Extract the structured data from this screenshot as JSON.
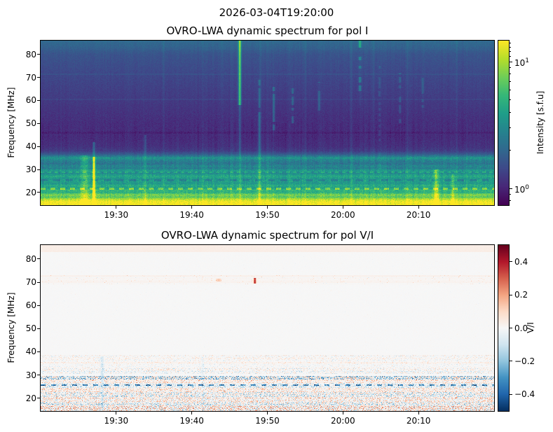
{
  "figure": {
    "suptitle": "2026-03-04T19:20:00",
    "background": "#ffffff"
  },
  "chart_data": [
    {
      "type": "heatmap",
      "title": "OVRO-LWA dynamic spectrum for pol I",
      "xlabel": "",
      "ylabel": "Frequency [MHz]",
      "x_axis": {
        "start": "19:20",
        "end": "20:20",
        "ticks": [
          {
            "label": "19:30",
            "min": 10
          },
          {
            "label": "19:40",
            "min": 20
          },
          {
            "label": "19:50",
            "min": 30
          },
          {
            "label": "20:00",
            "min": 40
          },
          {
            "label": "20:10",
            "min": 50
          }
        ]
      },
      "y_axis": {
        "min": 14.5,
        "max": 86,
        "tick_values": [
          20,
          30,
          40,
          50,
          60,
          70,
          80
        ]
      },
      "colorbar": {
        "label": "Intensity [s.f.u]",
        "scale": "log",
        "colormap": "viridis",
        "vmin": 0.74,
        "vmax": 14.7,
        "major_ticks": [
          {
            "base": "10",
            "exp": "1",
            "value": 10
          },
          {
            "base": "10",
            "exp": "0",
            "value": 1
          }
        ],
        "minor_tick_values": [
          0.8,
          0.9,
          2,
          3,
          4,
          5,
          6,
          7,
          8,
          9,
          11,
          12,
          13,
          14
        ]
      },
      "colormap_stops": [
        "#440154",
        "#482878",
        "#3e4989",
        "#31688e",
        "#26828e",
        "#1f9e89",
        "#35b779",
        "#6ece58",
        "#b5de2b",
        "#fde725"
      ],
      "background_profile": [
        [
          86,
          0.34
        ],
        [
          83,
          0.31
        ],
        [
          80,
          0.26
        ],
        [
          72,
          0.22
        ],
        [
          62,
          0.18
        ],
        [
          55,
          0.15
        ],
        [
          50,
          0.13
        ],
        [
          44,
          0.12
        ],
        [
          40,
          0.14
        ],
        [
          38,
          0.18
        ],
        [
          36.5,
          0.3
        ],
        [
          35,
          0.52
        ],
        [
          34,
          0.44
        ],
        [
          32.5,
          0.38
        ],
        [
          31.5,
          0.46
        ],
        [
          30.5,
          0.42
        ],
        [
          29.5,
          0.55
        ],
        [
          28.5,
          0.46
        ],
        [
          27,
          0.6
        ],
        [
          26,
          0.52
        ],
        [
          25,
          0.57
        ],
        [
          24,
          0.52
        ],
        [
          23,
          0.62
        ],
        [
          22,
          0.55
        ],
        [
          21,
          0.66
        ],
        [
          20,
          0.62
        ],
        [
          19,
          0.8
        ],
        [
          18,
          0.74
        ],
        [
          17,
          0.9
        ],
        [
          16,
          0.99
        ],
        [
          14.5,
          1.0
        ]
      ],
      "dash_rows": [
        {
          "f": 21.6,
          "dv": 0.22,
          "period": 14,
          "duty": 0.5
        },
        {
          "f": 25.2,
          "dv": -0.12,
          "period": 18,
          "duty": 0.55
        },
        {
          "f": 28.8,
          "dv": 0.12,
          "period": 10,
          "duty": 0.5
        }
      ],
      "h_lines": [
        {
          "f": 46,
          "dv": -0.03
        },
        {
          "f": 60.5,
          "dv": 0.03
        },
        {
          "f": 71.5,
          "dv": 0.03
        }
      ],
      "rfi_lines": [
        {
          "t_min": 16.2,
          "amp": 0.03,
          "w": 1.2
        },
        {
          "t_min": 24.0,
          "amp": 0.02,
          "w": 1.2
        },
        {
          "t_min": 29.0,
          "amp": 0.05,
          "w": 1.3
        },
        {
          "t_min": 35.0,
          "amp": 0.03,
          "w": 1.2
        },
        {
          "t_min": 41.0,
          "amp": 0.03,
          "w": 1.2
        },
        {
          "t_min": 44.0,
          "amp": 0.04,
          "w": 1.2
        },
        {
          "t_min": 48.5,
          "amp": 0.03,
          "w": 1.2
        },
        {
          "t_min": 55.0,
          "amp": 0.03,
          "w": 1.2
        }
      ],
      "bursts": [
        {
          "time": "19:26",
          "t_min": 5.8,
          "f_lo": 14.5,
          "f_hi": 36,
          "amp": 0.18,
          "w": 4.0,
          "spotty": false
        },
        {
          "time": "19:27",
          "t_min": 7.0,
          "f_lo": 14.5,
          "f_hi": 35.5,
          "amp": 0.65,
          "w": 1.3,
          "spotty": false
        },
        {
          "time": "19:27",
          "t_min": 7.0,
          "f_lo": 35.5,
          "f_hi": 42,
          "amp": 0.2,
          "w": 1.2,
          "spotty": false
        },
        {
          "time": "19:34",
          "t_min": 13.8,
          "f_lo": 14.5,
          "f_hi": 45,
          "amp": 0.12,
          "w": 1.2,
          "spotty": false
        },
        {
          "time": "19:46",
          "t_min": 26.3,
          "f_lo": 58,
          "f_hi": 86,
          "amp": 0.55,
          "w": 1.4,
          "spotty": false
        },
        {
          "time": "19:46",
          "t_min": 26.3,
          "f_lo": 36,
          "f_hi": 58,
          "amp": 0.15,
          "w": 1.2,
          "spotty": false
        },
        {
          "time": "19:46",
          "t_min": 26.3,
          "f_lo": 14.5,
          "f_hi": 36,
          "amp": 0.1,
          "w": 1.4,
          "spotty": false
        },
        {
          "time": "19:49",
          "t_min": 28.9,
          "f_lo": 14.5,
          "f_hi": 55,
          "amp": 0.2,
          "w": 1.3,
          "spotty": false
        },
        {
          "time": "19:49",
          "t_min": 28.9,
          "f_lo": 55,
          "f_hi": 70,
          "amp": 0.15,
          "w": 1.2,
          "spotty": true
        },
        {
          "time": "19:51",
          "t_min": 30.8,
          "f_lo": 45,
          "f_hi": 66,
          "amp": 0.18,
          "w": 1.2,
          "spotty": true
        },
        {
          "time": "19:53",
          "t_min": 33.3,
          "f_lo": 50,
          "f_hi": 70,
          "amp": 0.16,
          "w": 1.2,
          "spotty": true
        },
        {
          "time": "19:57",
          "t_min": 36.8,
          "f_lo": 54,
          "f_hi": 68,
          "amp": 0.14,
          "w": 1.2,
          "spotty": true
        },
        {
          "time": "20:02",
          "t_min": 42.2,
          "f_lo": 58,
          "f_hi": 79,
          "amp": 0.22,
          "w": 1.4,
          "spotty": true
        },
        {
          "time": "20:02",
          "t_min": 42.2,
          "f_lo": 83,
          "f_hi": 86,
          "amp": 0.3,
          "w": 1.4,
          "spotty": false
        },
        {
          "time": "20:05",
          "t_min": 44.8,
          "f_lo": 30,
          "f_hi": 75,
          "amp": 0.08,
          "w": 1.1,
          "spotty": true
        },
        {
          "time": "20:08",
          "t_min": 47.5,
          "f_lo": 50,
          "f_hi": 72,
          "amp": 0.12,
          "w": 1.2,
          "spotty": true
        },
        {
          "time": "20:10",
          "t_min": 50.5,
          "f_lo": 55,
          "f_hi": 70,
          "amp": 0.1,
          "w": 1.2,
          "spotty": true
        },
        {
          "time": "20:12",
          "t_min": 52.3,
          "f_lo": 14.5,
          "f_hi": 30,
          "amp": 0.25,
          "w": 2.5,
          "spotty": false
        },
        {
          "time": "20:14",
          "t_min": 54.5,
          "f_lo": 14.5,
          "f_hi": 28,
          "amp": 0.15,
          "w": 1.5,
          "spotty": false
        }
      ]
    },
    {
      "type": "heatmap",
      "title": "OVRO-LWA dynamic spectrum for pol V/I",
      "xlabel": "",
      "ylabel": "Frequency [MHz]",
      "x_axis": {
        "start": "19:20",
        "end": "20:20",
        "ticks": [
          {
            "label": "19:30",
            "min": 10
          },
          {
            "label": "19:40",
            "min": 20
          },
          {
            "label": "19:50",
            "min": 30
          },
          {
            "label": "20:00",
            "min": 40
          },
          {
            "label": "20:10",
            "min": 50
          }
        ]
      },
      "y_axis": {
        "min": 14.5,
        "max": 86,
        "tick_values": [
          20,
          30,
          40,
          50,
          60,
          70,
          80
        ]
      },
      "colorbar": {
        "label": "V/I",
        "scale": "linear",
        "colormap": "RdBu_r",
        "vmin": -0.5,
        "vmax": 0.5,
        "ticks": [
          {
            "label": "0.4",
            "value": 0.4
          },
          {
            "label": "0.2",
            "value": 0.2
          },
          {
            "label": "0.0",
            "value": 0.0
          },
          {
            "label": "−0.2",
            "value": -0.2
          },
          {
            "label": "−0.4",
            "value": -0.4
          }
        ]
      },
      "colormap_stops": [
        "#053061",
        "#2166ac",
        "#4393c3",
        "#92c5de",
        "#d1e5f0",
        "#f7f7f7",
        "#fddbc7",
        "#f4a582",
        "#d6604d",
        "#b2182b",
        "#67001f"
      ],
      "top_tint": {
        "f_lo": 83,
        "f_hi": 86,
        "value": 0.035
      },
      "speckle_bands": [
        {
          "f_lo": 69,
          "f_hi": 73,
          "density": 0.06,
          "amp": 0.15,
          "bias": 0.03
        },
        {
          "f_lo": 36,
          "f_hi": 38.5,
          "density": 0.35,
          "amp": 0.18,
          "bias": 0.0
        },
        {
          "f_lo": 33,
          "f_hi": 36,
          "density": 0.3,
          "amp": 0.15,
          "bias": 0.02
        },
        {
          "f_lo": 30.5,
          "f_hi": 33,
          "density": 0.45,
          "amp": 0.25,
          "bias": -0.02
        },
        {
          "f_lo": 28,
          "f_hi": 29.5,
          "density": 0.85,
          "amp": 0.55,
          "bias": -0.08
        },
        {
          "f_lo": 26.5,
          "f_hi": 28,
          "density": 0.5,
          "amp": 0.3,
          "bias": 0.04
        },
        {
          "f_lo": 24.5,
          "f_hi": 26.5,
          "density": 0.6,
          "amp": 0.35,
          "bias": -0.05
        },
        {
          "f_lo": 22.5,
          "f_hi": 24.5,
          "density": 0.6,
          "amp": 0.3,
          "bias": 0.06
        },
        {
          "f_lo": 20.5,
          "f_hi": 22.5,
          "density": 0.7,
          "amp": 0.4,
          "bias": -0.04
        },
        {
          "f_lo": 18.5,
          "f_hi": 20.5,
          "density": 0.7,
          "amp": 0.35,
          "bias": 0.05
        },
        {
          "f_lo": 16.5,
          "f_hi": 18.5,
          "density": 0.75,
          "amp": 0.4,
          "bias": -0.03
        },
        {
          "f_lo": 14.5,
          "f_hi": 16.5,
          "density": 0.8,
          "amp": 0.45,
          "bias": 0.02
        }
      ],
      "dash_row": {
        "f": 25.6,
        "amp": -0.3,
        "period": 15,
        "duty": 0.45
      },
      "features": [
        {
          "type": "vstreak",
          "time": "19:28",
          "t_min": 8.1,
          "f_lo": 14.5,
          "f_hi": 38,
          "amp": -0.13,
          "w": 1.5
        },
        {
          "type": "vstreak",
          "time": "19:41",
          "t_min": 21.4,
          "f_lo": 14.5,
          "f_hi": 38,
          "amp": -0.05,
          "w": 1.5
        },
        {
          "type": "dot",
          "time": "19:48",
          "t_min": 28.3,
          "f": 70.5,
          "amp": 0.38,
          "w": 1.2,
          "h_mhz": 1.2
        },
        {
          "type": "dot",
          "time": "19:44",
          "t_min": 23.5,
          "f": 71.0,
          "amp": 0.12,
          "w": 3.0,
          "h_mhz": 0.6
        },
        {
          "type": "patch",
          "time": "20:01",
          "t_min": 41.0,
          "f_lo": 27.5,
          "f_hi": 29.0,
          "amp": 0.18,
          "w": 8
        }
      ]
    }
  ]
}
